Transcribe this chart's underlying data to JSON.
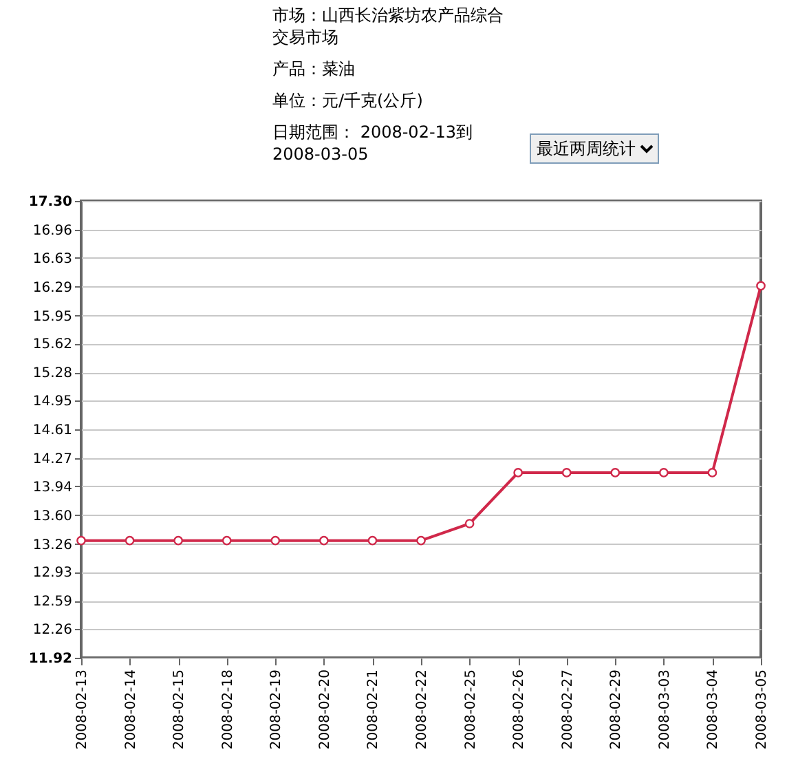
{
  "chart_data": {
    "type": "line",
    "title": "市场：山西长治紫坊农产品综合交易市场",
    "subtitle": "产品：菜油",
    "annotations": [
      "单位：元/千克(公斤)",
      "日期范围： 2008-02-13到2008-03-05",
      "最近两周统计"
    ],
    "categories": [
      "2008-02-13",
      "2008-02-14",
      "2008-02-15",
      "2008-02-18",
      "2008-02-19",
      "2008-02-20",
      "2008-02-21",
      "2008-02-22",
      "2008-02-25",
      "2008-02-26",
      "2008-02-27",
      "2008-02-29",
      "2008-03-03",
      "2008-03-04",
      "2008-03-05"
    ],
    "series": [
      {
        "color": "#d0284a",
        "values": [
          13.3,
          13.3,
          13.3,
          13.3,
          13.3,
          13.3,
          13.3,
          13.3,
          13.5,
          14.1,
          14.1,
          14.1,
          14.1,
          14.1,
          16.3
        ]
      }
    ],
    "ylim": [
      11.92,
      17.3
    ],
    "yticks": [
      11.92,
      12.26,
      12.59,
      12.93,
      13.26,
      {
        "value": 13.6,
        "label": "13.60"
      },
      13.94,
      14.27,
      14.61,
      14.95,
      15.28,
      15.62,
      15.95,
      16.29,
      16.63,
      16.96,
      {
        "value": 17.3,
        "label": "17.30"
      }
    ],
    "grid": "y",
    "marker": "circle",
    "line_style": "solid"
  }
}
